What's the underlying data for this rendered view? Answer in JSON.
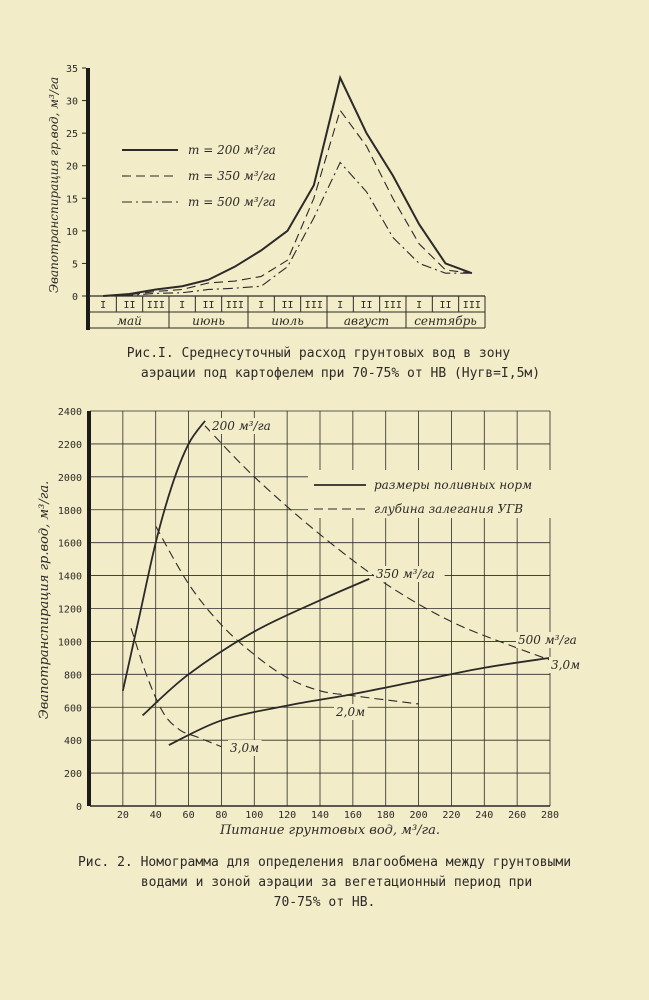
{
  "chart_data": [
    {
      "type": "line",
      "ylabel": "Эвапотранспирация гр.вод, м³/га",
      "yticks": [
        "0",
        "5",
        "10",
        "15",
        "20",
        "25",
        "30",
        "35"
      ],
      "ylim": [
        0,
        35
      ],
      "decades": [
        "I",
        "II",
        "III",
        "I",
        "II",
        "III",
        "I",
        "II",
        "III",
        "I",
        "II",
        "III",
        "I",
        "II",
        "III"
      ],
      "months": [
        "май",
        "июнь",
        "июль",
        "август",
        "сентябрь"
      ],
      "series": [
        {
          "name": "m = 200 м³/га",
          "style": "solid",
          "values": [
            0,
            0.3,
            1.0,
            1.5,
            2.5,
            4.5,
            7,
            10,
            17,
            33.5,
            25,
            18.5,
            11,
            5,
            3.5
          ]
        },
        {
          "name": "m = 350 м³/га",
          "style": "dashed",
          "values": [
            0,
            0.2,
            0.7,
            1.0,
            2.0,
            2.3,
            3.0,
            5.5,
            15,
            28.5,
            23,
            15,
            8,
            4,
            3.5
          ]
        },
        {
          "name": "m = 500 м³/га",
          "style": "dashdot",
          "values": [
            0,
            0.1,
            0.4,
            0.5,
            1.0,
            1.2,
            1.5,
            4.5,
            12,
            20.5,
            16,
            9,
            5,
            3.5,
            3.5
          ]
        }
      ],
      "caption": [
        "Рис.I.  Среднесуточный расход грунтовых вод в зону",
        "аэрации под картофелем при 70-75% от НВ (Нугв=I,5м)"
      ]
    },
    {
      "type": "line",
      "xlabel": "Питание  грунтовых  вод,  м³/га.",
      "ylabel": "Эвапотранспирация гр.вод, м³/га.",
      "xticks": [
        "20",
        "40",
        "60",
        "80",
        "100",
        "120",
        "140",
        "160",
        "180",
        "200",
        "220",
        "240",
        "260",
        "280"
      ],
      "yticks": [
        "0",
        "200",
        "400",
        "600",
        "800",
        "1000",
        "1200",
        "1400",
        "1600",
        "1800",
        "2000",
        "2200",
        "2400"
      ],
      "xlim": [
        0,
        280
      ],
      "ylim": [
        0,
        2400
      ],
      "legend": [
        {
          "label": "размеры поливных норм",
          "style": "solid"
        },
        {
          "label": "глубина залегания УГВ",
          "style": "dashed"
        }
      ],
      "series": [
        {
          "name": "200 м³/га",
          "style": "solid",
          "points": [
            [
              20,
              700
            ],
            [
              30,
              1150
            ],
            [
              40,
              1600
            ],
            [
              50,
              1950
            ],
            [
              60,
              2200
            ],
            [
              70,
              2340
            ]
          ]
        },
        {
          "name": "350 м³/га",
          "style": "solid",
          "points": [
            [
              32,
              550
            ],
            [
              60,
              800
            ],
            [
              100,
              1060
            ],
            [
              140,
              1250
            ],
            [
              170,
              1380
            ]
          ]
        },
        {
          "name": "500 м³/га",
          "style": "solid",
          "points": [
            [
              48,
              370
            ],
            [
              80,
              520
            ],
            [
              120,
              610
            ],
            [
              160,
              680
            ],
            [
              200,
              760
            ],
            [
              240,
              840
            ],
            [
              280,
              900
            ]
          ]
        },
        {
          "name": "",
          "style": "dashed",
          "points": [
            [
              70,
              2310
            ],
            [
              100,
              2000
            ],
            [
              140,
              1650
            ],
            [
              180,
              1350
            ],
            [
              220,
              1120
            ],
            [
              260,
              960
            ],
            [
              285,
              870
            ]
          ]
        },
        {
          "name": "2,0м",
          "style": "dashed",
          "points": [
            [
              40,
              1700
            ],
            [
              60,
              1350
            ],
            [
              80,
              1100
            ],
            [
              100,
              920
            ],
            [
              120,
              780
            ],
            [
              140,
              700
            ],
            [
              160,
              670
            ],
            [
              200,
              620
            ]
          ]
        },
        {
          "name": "3,0м",
          "style": "dashed",
          "points": [
            [
              25,
              1080
            ],
            [
              35,
              780
            ],
            [
              45,
              560
            ],
            [
              55,
              460
            ],
            [
              65,
              420
            ],
            [
              80,
              360
            ]
          ]
        }
      ],
      "annotations": [
        "200 м³/га",
        "350 м³/га",
        "500 м³/га",
        "2,0м",
        "3,0м",
        "3,0м"
      ],
      "caption": [
        "Рис. 2. Номограмма для определения влагообмена между грунтовыми",
        "водами и зоной аэрации за вегетационный период при",
        "70-75% от НВ."
      ]
    }
  ]
}
